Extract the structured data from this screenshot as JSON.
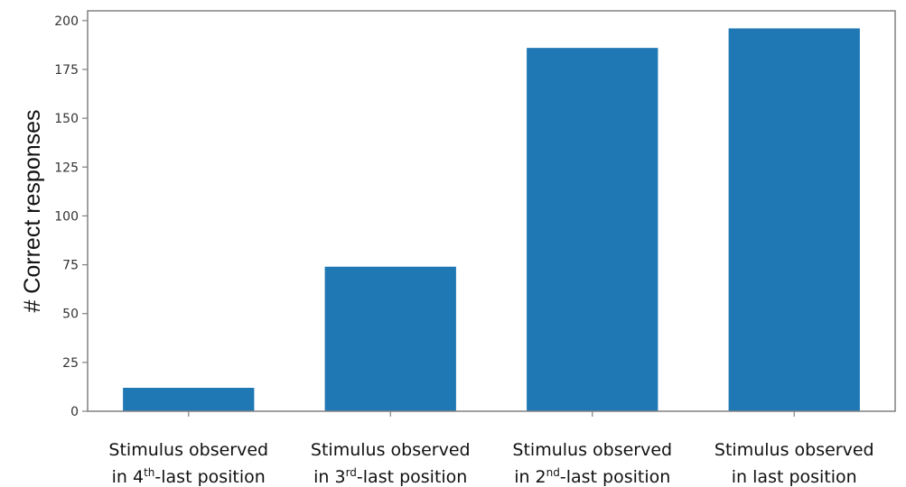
{
  "chart_data": {
    "type": "bar",
    "title": "",
    "xlabel": "",
    "ylabel": "# Correct responses",
    "categories": [
      {
        "line1": "Stimulus observed",
        "line2_prefix": "in 4",
        "line2_sup": "th",
        "line2_suffix": "-last position"
      },
      {
        "line1": "Stimulus observed",
        "line2_prefix": "in 3",
        "line2_sup": "rd",
        "line2_suffix": "-last position"
      },
      {
        "line1": "Stimulus observed",
        "line2_prefix": "in 2",
        "line2_sup": "nd",
        "line2_suffix": "-last position"
      },
      {
        "line1": "Stimulus observed",
        "line2_prefix": "in last position",
        "line2_sup": "",
        "line2_suffix": ""
      }
    ],
    "values": [
      12,
      74,
      186,
      196
    ],
    "ylim": [
      0,
      205
    ],
    "yticks": [
      0,
      25,
      50,
      75,
      100,
      125,
      150,
      175,
      200
    ],
    "grid": false,
    "legend": "none",
    "bar_color": "#1f77b4",
    "axis_color": "#808080"
  }
}
